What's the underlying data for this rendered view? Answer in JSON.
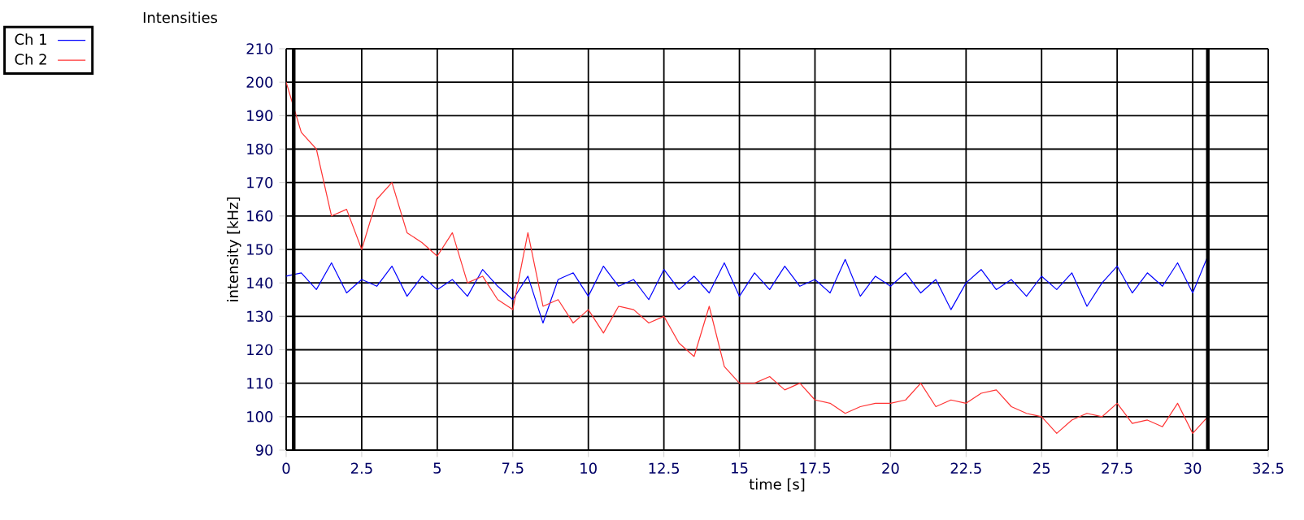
{
  "chart_data": {
    "type": "line",
    "title": "Intensities",
    "xlabel": "time [s]",
    "ylabel": "intensity [kHz]",
    "x": [
      0,
      0.5,
      1,
      1.5,
      2,
      2.5,
      3,
      3.5,
      4,
      4.5,
      5,
      5.5,
      6,
      6.5,
      7,
      7.5,
      8,
      8.5,
      9,
      9.5,
      10,
      10.5,
      11,
      11.5,
      12,
      12.5,
      13,
      13.5,
      14,
      14.5,
      15,
      15.5,
      16,
      16.5,
      17,
      17.5,
      18,
      18.5,
      19,
      19.5,
      20,
      20.5,
      21,
      21.5,
      22,
      22.5,
      23,
      23.5,
      24,
      24.5,
      25,
      25.5,
      26,
      26.5,
      27,
      27.5,
      28,
      28.5,
      29,
      29.5,
      30,
      30.5
    ],
    "series": [
      {
        "name": "Ch 1",
        "color": "#0000ff",
        "values": [
          142,
          143,
          138,
          146,
          137,
          141,
          139,
          145,
          136,
          142,
          138,
          141,
          136,
          144,
          139,
          135,
          142,
          128,
          141,
          143,
          136,
          145,
          139,
          141,
          135,
          144,
          138,
          142,
          137,
          146,
          136,
          143,
          138,
          145,
          139,
          141,
          137,
          147,
          136,
          142,
          139,
          143,
          137,
          141,
          132,
          140,
          144,
          138,
          141,
          136,
          142,
          138,
          143,
          133,
          140,
          145,
          137,
          143,
          139,
          146,
          137,
          148
        ]
      },
      {
        "name": "Ch 2",
        "color": "#ff3333",
        "values": [
          200,
          185,
          180,
          160,
          162,
          150,
          165,
          170,
          155,
          152,
          148,
          155,
          140,
          142,
          135,
          132,
          155,
          133,
          135,
          128,
          132,
          125,
          133,
          132,
          128,
          130,
          122,
          118,
          133,
          115,
          110,
          110,
          112,
          108,
          110,
          105,
          104,
          101,
          103,
          104,
          104,
          105,
          110,
          103,
          105,
          104,
          107,
          108,
          103,
          101,
          100,
          95,
          99,
          101,
          100,
          104,
          98,
          99,
          97,
          104,
          95,
          100
        ]
      }
    ],
    "xlim": [
      0,
      32.5
    ],
    "xticks": [
      0,
      2.5,
      5,
      7.5,
      10,
      12.5,
      15,
      17.5,
      20,
      22.5,
      25,
      27.5,
      30,
      32.5
    ],
    "ylim": [
      90,
      210
    ],
    "yticks": [
      90,
      100,
      110,
      120,
      130,
      140,
      150,
      160,
      170,
      180,
      190,
      200,
      210
    ],
    "ref_lines": [
      {
        "axis": "x",
        "value": 0.25,
        "color": "#000000"
      },
      {
        "axis": "x",
        "value": 30.5,
        "color": "#000000"
      }
    ],
    "grid": true,
    "legend": "top left",
    "marker": "none",
    "line_style": "solid"
  }
}
